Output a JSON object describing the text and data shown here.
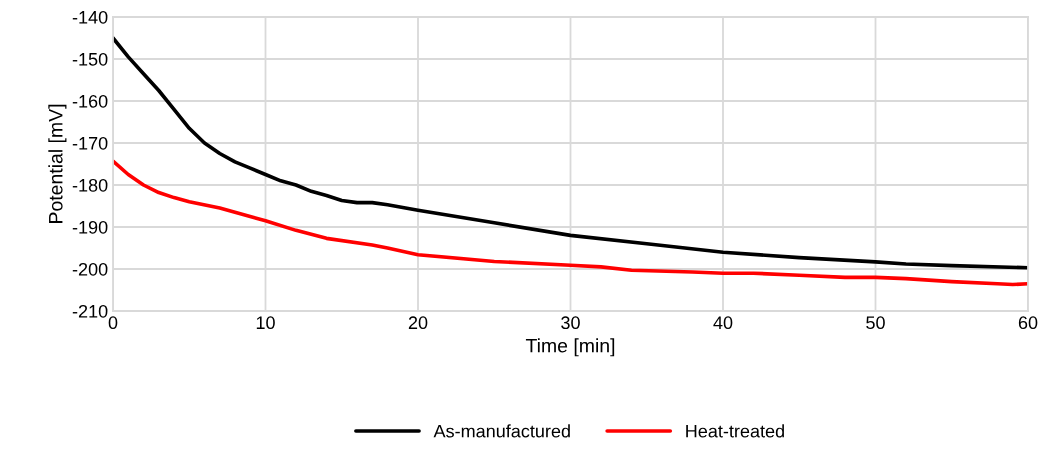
{
  "chart_data": {
    "type": "line",
    "xlabel": "Time [min]",
    "ylabel": "Potential [mV]",
    "xlim": [
      0,
      60
    ],
    "xticks": [
      0,
      10,
      20,
      30,
      40,
      50,
      60
    ],
    "ylim": [
      -210,
      -140
    ],
    "yticks": [
      -210,
      -200,
      -190,
      -180,
      -170,
      -160,
      -150,
      -140
    ],
    "grid": true,
    "legend": "bottom",
    "marker": "none",
    "line_style": "solid",
    "series": [
      {
        "name": "As-manufactured",
        "color": "#000000",
        "x": [
          0,
          1,
          2,
          3,
          4,
          5,
          6,
          7,
          8,
          9,
          10,
          11,
          12,
          13,
          14,
          15,
          16,
          17,
          18,
          20,
          25,
          30,
          35,
          40,
          45,
          50,
          52,
          55,
          60
        ],
        "values": [
          -145,
          -149.5,
          -153.5,
          -157.5,
          -162,
          -166.5,
          -170,
          -172.5,
          -174.5,
          -176,
          -177.5,
          -179,
          -180,
          -181.5,
          -182.5,
          -183.7,
          -184.2,
          -184.2,
          -184.7,
          -186,
          -189,
          -192,
          -194,
          -196,
          -197.3,
          -198.3,
          -198.8,
          -199.2,
          -199.7
        ]
      },
      {
        "name": "Heat-treated",
        "color": "#ff0000",
        "x": [
          0,
          1,
          2,
          3,
          4,
          5,
          7,
          10,
          12,
          14,
          17,
          18,
          20,
          25,
          30,
          32,
          34,
          38,
          40,
          42,
          45,
          48,
          50,
          52,
          55,
          58,
          59,
          60
        ],
        "values": [
          -174.3,
          -177.5,
          -180,
          -181.8,
          -183,
          -184,
          -185.5,
          -188.5,
          -190.8,
          -192.7,
          -194.3,
          -195,
          -196.6,
          -198.2,
          -199.1,
          -199.5,
          -200.3,
          -200.7,
          -201,
          -201,
          -201.5,
          -202,
          -202,
          -202.3,
          -203,
          -203.5,
          -203.7,
          -203.5
        ]
      }
    ]
  }
}
